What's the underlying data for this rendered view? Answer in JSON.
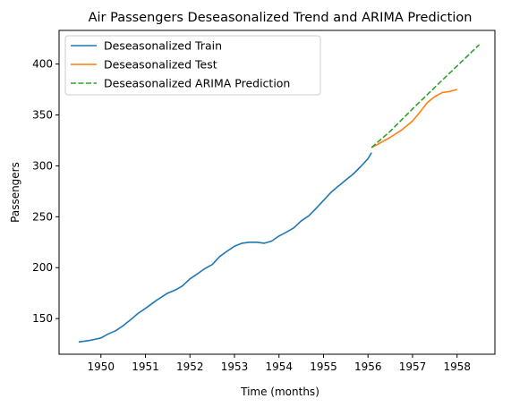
{
  "chart_data": {
    "type": "line",
    "title": "Air Passengers Deseasonalized Trend and ARIMA Prediction",
    "xlabel": "Time (months)",
    "ylabel": "Passengers",
    "xlim": [
      1949.06,
      1958.85
    ],
    "ylim": [
      115,
      433
    ],
    "xticks": [
      1950,
      1951,
      1952,
      1953,
      1954,
      1955,
      1956,
      1957,
      1958
    ],
    "yticks": [
      150,
      200,
      250,
      300,
      350,
      400
    ],
    "grid": false,
    "legend_position": "top-left",
    "series": [
      {
        "name": "Deseasonalized Train",
        "color": "#1f77b4",
        "style": "solid",
        "x": [
          1949.5,
          1949.75,
          1950.0,
          1950.17,
          1950.33,
          1950.5,
          1950.67,
          1950.83,
          1951.0,
          1951.25,
          1951.5,
          1951.67,
          1951.83,
          1952.0,
          1952.17,
          1952.33,
          1952.5,
          1952.67,
          1952.83,
          1953.0,
          1953.17,
          1953.33,
          1953.5,
          1953.67,
          1953.83,
          1954.0,
          1954.17,
          1954.33,
          1954.5,
          1954.67,
          1954.83,
          1955.0,
          1955.17,
          1955.33,
          1955.5,
          1955.67,
          1955.83,
          1956.0,
          1956.08
        ],
        "y": [
          127,
          128.5,
          131,
          135,
          138,
          143,
          149,
          155,
          160,
          168,
          175,
          178,
          182,
          189,
          194,
          199,
          203,
          211,
          216,
          221,
          224,
          225,
          225,
          224,
          226,
          231,
          235,
          239,
          246,
          251,
          258,
          266,
          274,
          280,
          286,
          292,
          299,
          307,
          313
        ]
      },
      {
        "name": "Deseasonalized Test",
        "color": "#ff7f0e",
        "style": "solid",
        "x": [
          1956.08,
          1956.25,
          1956.5,
          1956.75,
          1957.0,
          1957.17,
          1957.33,
          1957.5,
          1957.67,
          1957.83,
          1958.0
        ],
        "y": [
          318,
          322,
          328,
          335,
          344,
          353,
          362,
          368,
          372,
          373,
          375
        ]
      },
      {
        "name": "Deseasonalized ARIMA Prediction",
        "color": "#2ca02c",
        "style": "dashed",
        "x": [
          1956.08,
          1956.5,
          1957.0,
          1957.5,
          1958.0,
          1958.5
        ],
        "y": [
          318,
          334,
          356,
          377,
          398,
          419
        ]
      }
    ]
  }
}
